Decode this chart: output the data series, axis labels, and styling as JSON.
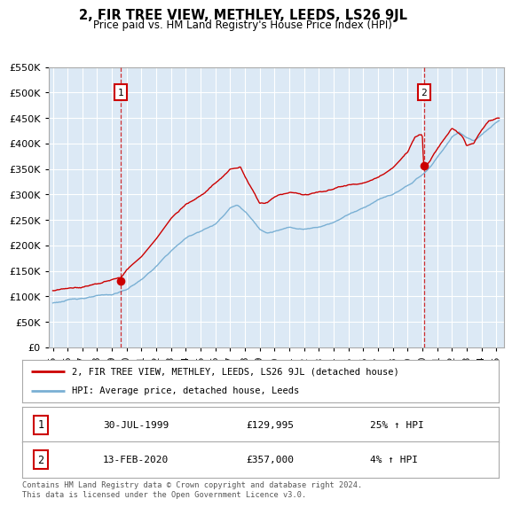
{
  "title": "2, FIR TREE VIEW, METHLEY, LEEDS, LS26 9JL",
  "subtitle": "Price paid vs. HM Land Registry's House Price Index (HPI)",
  "ylim": [
    0,
    550000
  ],
  "yticks": [
    0,
    50000,
    100000,
    150000,
    200000,
    250000,
    300000,
    350000,
    400000,
    450000,
    500000,
    550000
  ],
  "xlim_start": 1994.7,
  "xlim_end": 2025.5,
  "sale1_year": 1999.58,
  "sale1_price": 129995,
  "sale1_date": "30-JUL-1999",
  "sale1_hpi_pct": "25% ↑ HPI",
  "sale2_year": 2020.12,
  "sale2_price": 357000,
  "sale2_date": "13-FEB-2020",
  "sale2_hpi_pct": "4% ↑ HPI",
  "legend_property": "2, FIR TREE VIEW, METHLEY, LEEDS, LS26 9JL (detached house)",
  "legend_hpi": "HPI: Average price, detached house, Leeds",
  "footer": "Contains HM Land Registry data © Crown copyright and database right 2024.\nThis data is licensed under the Open Government Licence v3.0.",
  "property_color": "#cc0000",
  "hpi_color": "#7ab0d4",
  "vline_color": "#cc0000",
  "background_color": "#ffffff",
  "plot_bg_color": "#dce9f5",
  "grid_color": "#ffffff"
}
